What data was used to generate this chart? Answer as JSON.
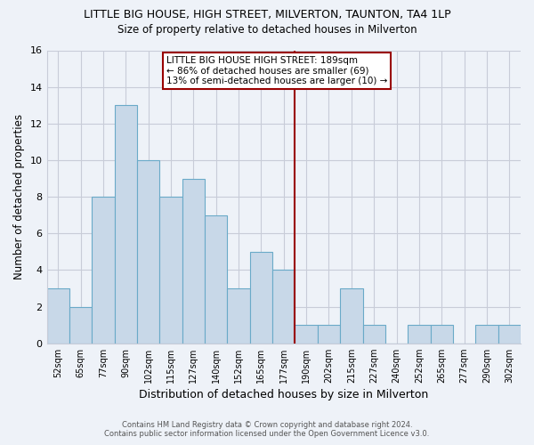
{
  "title": "LITTLE BIG HOUSE, HIGH STREET, MILVERTON, TAUNTON, TA4 1LP",
  "subtitle": "Size of property relative to detached houses in Milverton",
  "xlabel": "Distribution of detached houses by size in Milverton",
  "ylabel": "Number of detached properties",
  "bin_labels": [
    "52sqm",
    "65sqm",
    "77sqm",
    "90sqm",
    "102sqm",
    "115sqm",
    "127sqm",
    "140sqm",
    "152sqm",
    "165sqm",
    "177sqm",
    "190sqm",
    "202sqm",
    "215sqm",
    "227sqm",
    "240sqm",
    "252sqm",
    "265sqm",
    "277sqm",
    "290sqm",
    "302sqm"
  ],
  "bar_heights": [
    3,
    2,
    8,
    13,
    10,
    8,
    9,
    7,
    3,
    5,
    4,
    1,
    1,
    3,
    1,
    0,
    1,
    1,
    0,
    1,
    1
  ],
  "bar_color": "#c8d8e8",
  "bar_edge_color": "#6aaac8",
  "reference_line_color": "#990000",
  "annotation_box_text": "LITTLE BIG HOUSE HIGH STREET: 189sqm\n← 86% of detached houses are smaller (69)\n13% of semi-detached houses are larger (10) →",
  "annotation_box_color": "#990000",
  "ylim": [
    0,
    16
  ],
  "yticks": [
    0,
    2,
    4,
    6,
    8,
    10,
    12,
    14,
    16
  ],
  "background_color": "#eef2f8",
  "grid_color": "#c8ccd8",
  "footer_line1": "Contains HM Land Registry data © Crown copyright and database right 2024.",
  "footer_line2": "Contains public sector information licensed under the Open Government Licence v3.0."
}
